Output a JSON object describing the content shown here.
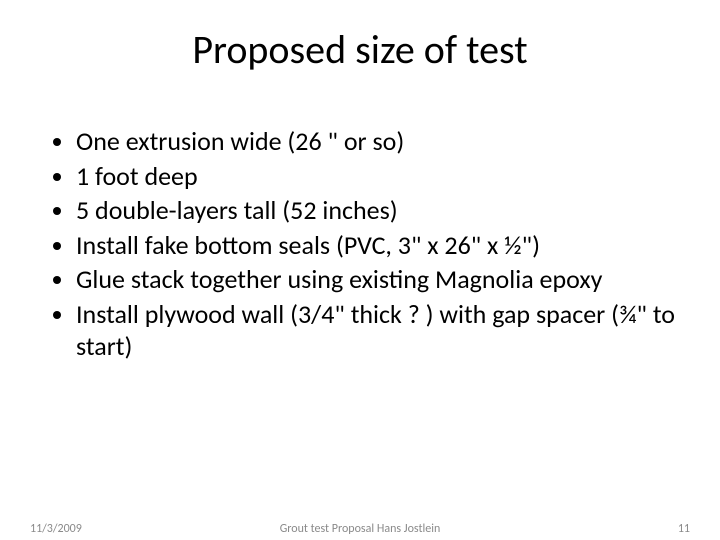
{
  "title": "Proposed size of test",
  "bullets": [
    "One extrusion wide (26 \" or so)",
    "1 foot deep",
    "5 double-layers tall (52 inches)",
    "Install fake bottom seals (PVC, 3\" x 26\" x ½\")",
    "Glue stack together using existing Magnolia epoxy",
    "Install plywood wall (3/4\" thick ? ) with gap spacer (¾\" to start)"
  ],
  "footer": {
    "date": "11/3/2009",
    "center": "Grout test Proposal    Hans Jostlein",
    "page": "11"
  }
}
